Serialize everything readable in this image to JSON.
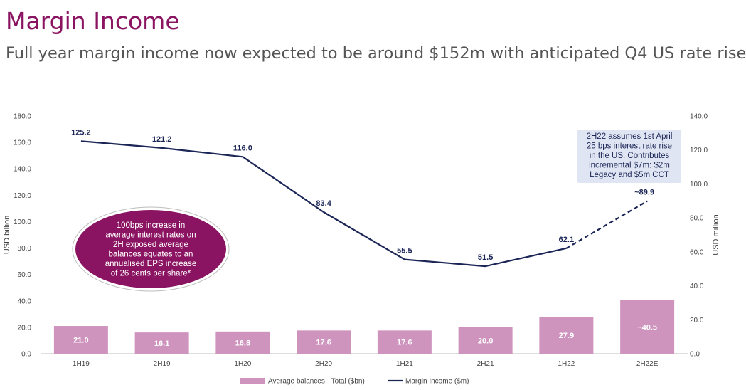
{
  "header": {
    "title": "Margin Income",
    "subtitle": "Full year margin income now expected to be around $152m with anticipated Q4 US rate rise"
  },
  "chart_data": {
    "type": "bar",
    "categories": [
      "1H19",
      "2H19",
      "1H20",
      "2H20",
      "1H21",
      "2H21",
      "1H22",
      "2H22E"
    ],
    "series": [
      {
        "name": "Average balances - Total ($bn)",
        "type": "bar",
        "axis": "left",
        "values": [
          21.0,
          16.1,
          16.8,
          17.6,
          17.6,
          20.0,
          27.9,
          40.5
        ],
        "labels": [
          "21.0",
          "16.1",
          "16.8",
          "17.6",
          "17.6",
          "20.0",
          "27.9",
          "~40.5"
        ],
        "color": "#cf94be"
      },
      {
        "name": "Margin Income ($m)",
        "type": "line",
        "axis": "right",
        "values": [
          125.2,
          121.2,
          116.0,
          83.4,
          55.5,
          51.5,
          62.1,
          89.9
        ],
        "labels": [
          "125.2",
          "121.2",
          "116.0",
          "83.4",
          "55.5",
          "51.5",
          "62.1",
          "~89.9"
        ],
        "dashed_last_segment": true,
        "color": "#1b2656"
      }
    ],
    "ylabel": "USD billion",
    "y2label": "USD million",
    "ylim": [
      0,
      180
    ],
    "y2lim": [
      0,
      140
    ],
    "yticks": [
      "0.0",
      "20.0",
      "40.0",
      "60.0",
      "80.0",
      "100.0",
      "120.0",
      "140.0",
      "160.0",
      "180.0"
    ],
    "y2ticks": [
      "0.0",
      "20.0",
      "40.0",
      "60.0",
      "80.0",
      "100.0",
      "120.0",
      "140.0"
    ],
    "grid": false,
    "legend_position": "bottom",
    "annotations": {
      "ellipse_lines": [
        "100bps increase in",
        "average interest rates on",
        "2H exposed average",
        "balances equates to an",
        "annualised EPS increase",
        "of 26 cents per share*"
      ],
      "ellipse_color": "#8a1461",
      "callout_lines": [
        "2H22 assumes 1st April",
        "25 bps interest rate rise",
        "in the US. Contributes",
        "incremental $7m: $2m",
        "Legacy and $5m CCT"
      ],
      "callout_color": "#dfe5f2"
    }
  }
}
